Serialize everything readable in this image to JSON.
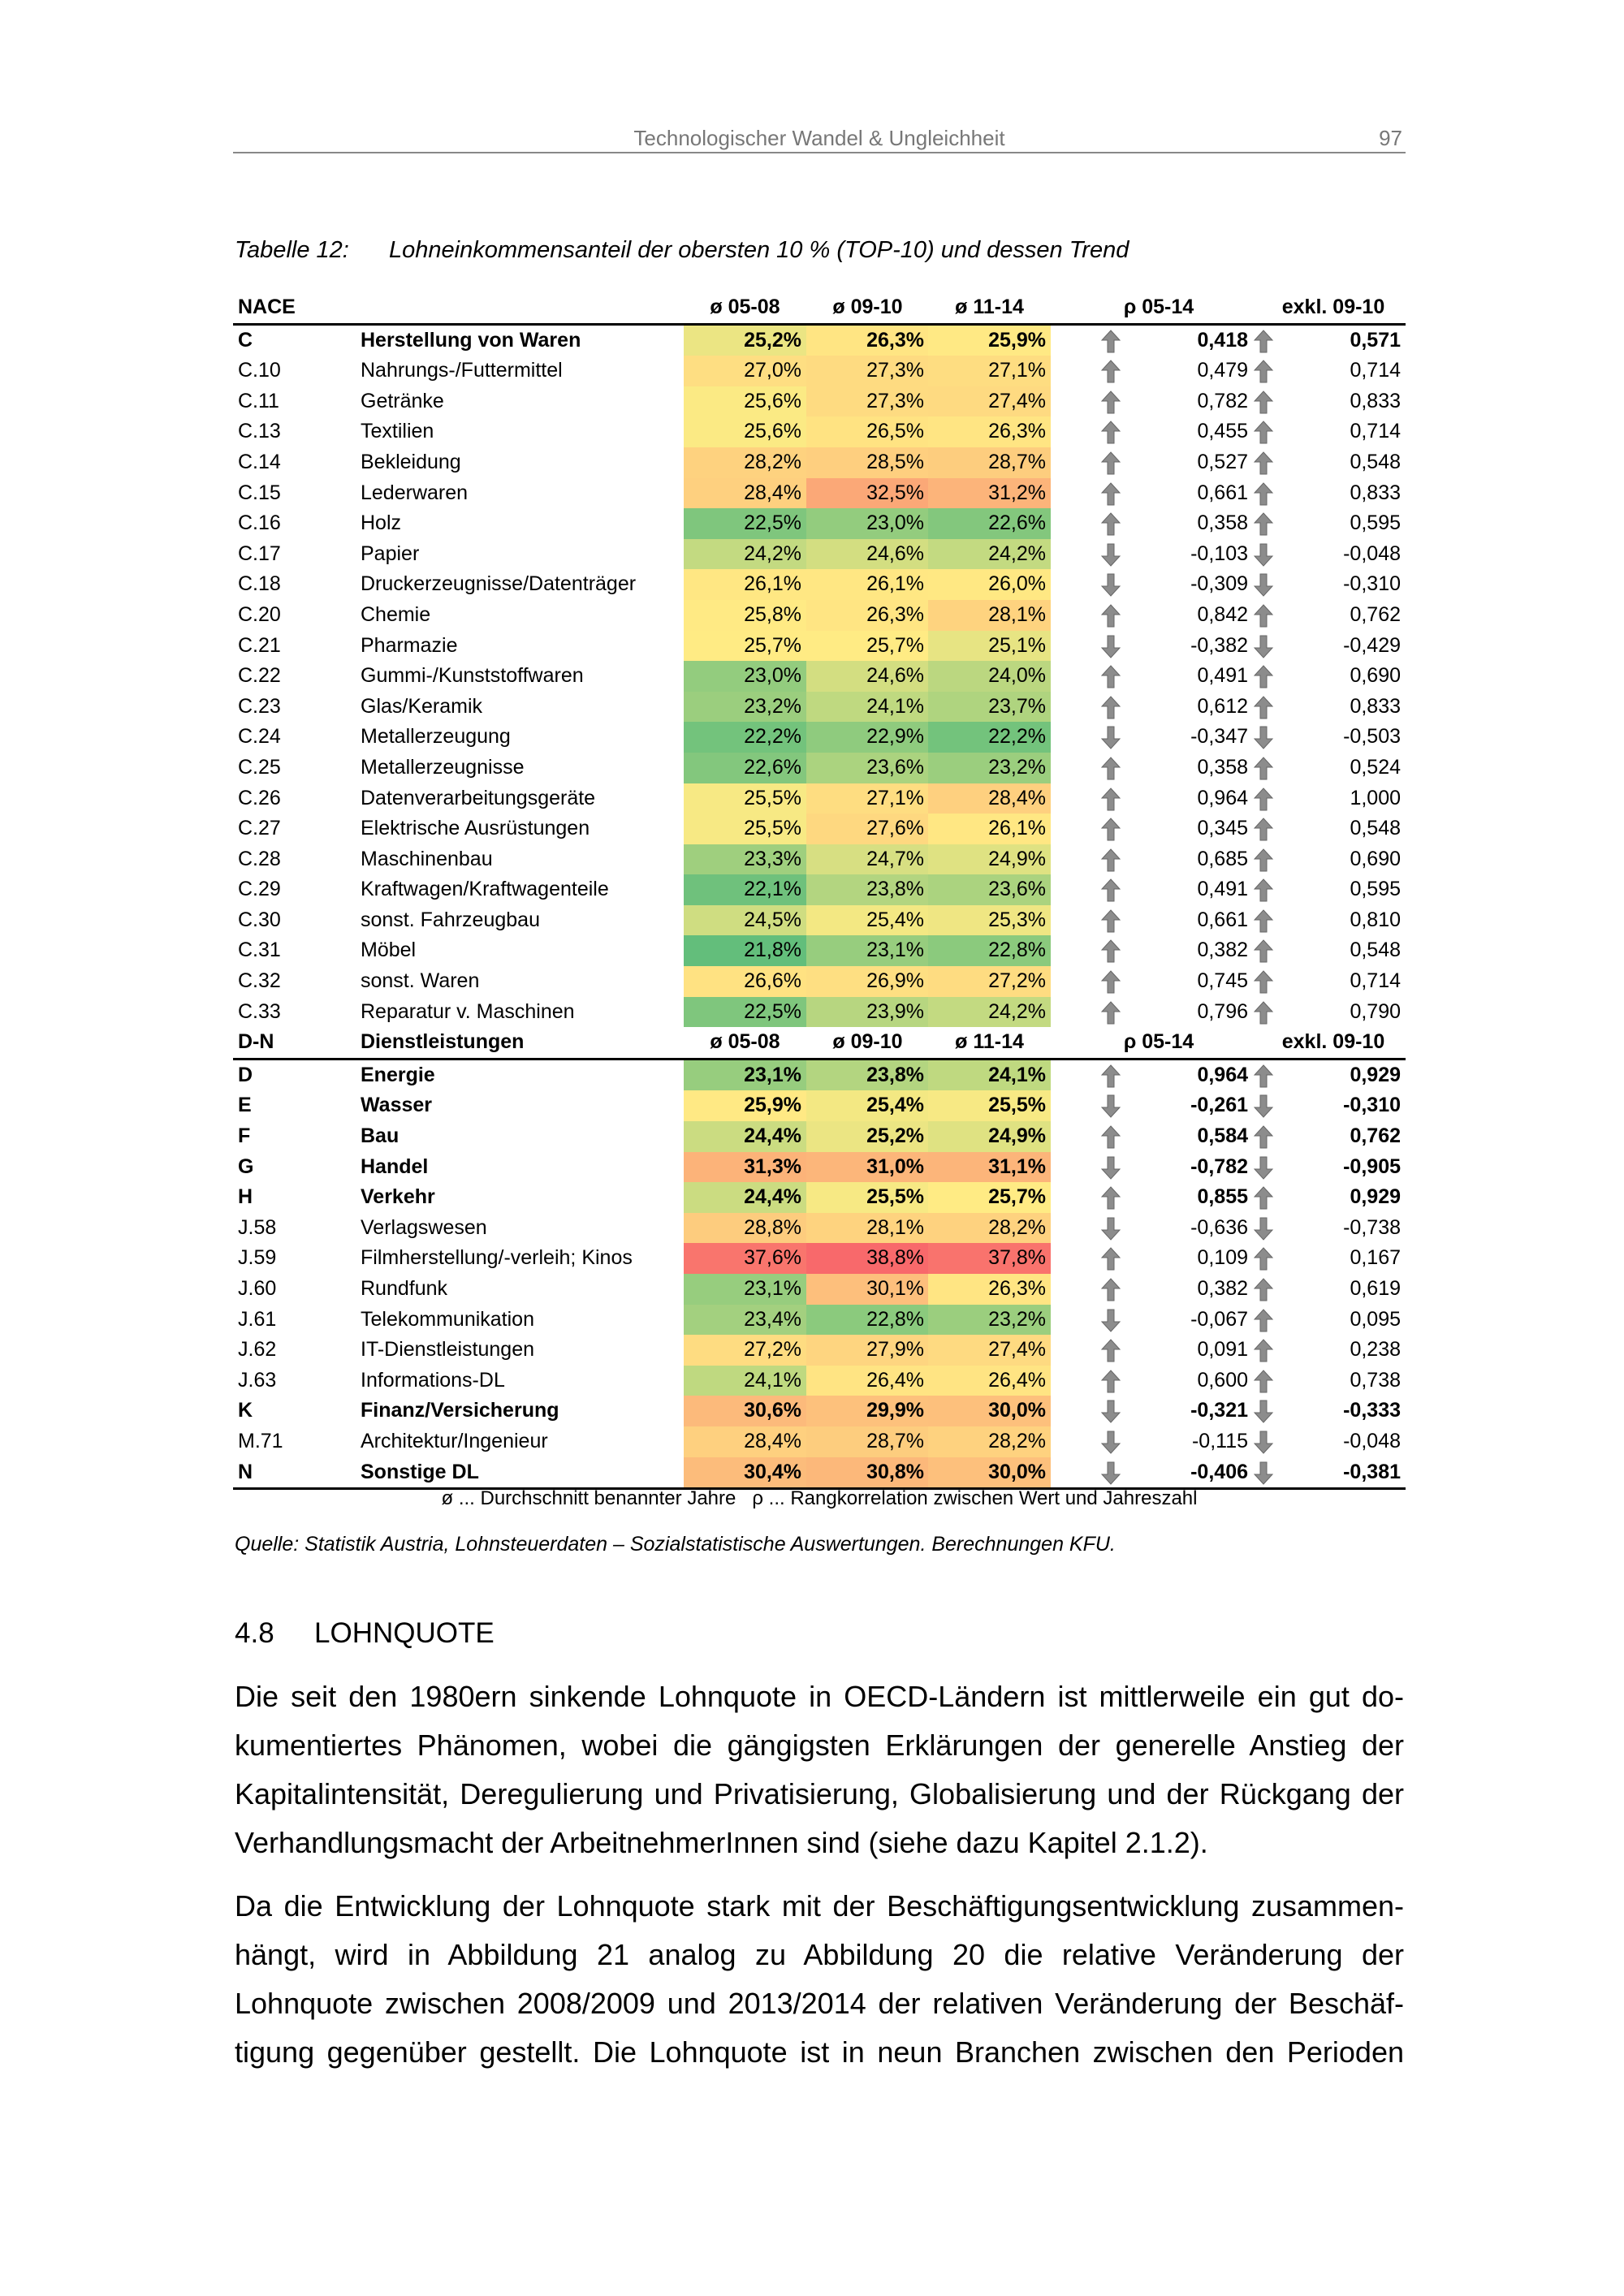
{
  "running_head": {
    "title": "Technologischer Wandel & Ungleichheit",
    "page": "97"
  },
  "caption": {
    "label": "Tabelle 12:",
    "text": "Lohneinkommensanteil der obersten 10 % (TOP-10) und dessen Trend"
  },
  "table": {
    "color_scale": {
      "low": "#63BE7B",
      "mid": "#FFEB84",
      "high": "#F8696B"
    },
    "arrow_color": "#8c8c8c",
    "columns": [
      "ø 05-08",
      "ø 09-10",
      "ø 11-14",
      "ρ 05-14",
      "exkl. 09-10"
    ],
    "sections": [
      {
        "code": "NACE",
        "name": "",
        "rows": [
          {
            "code": "C",
            "name": "Herstellung von Waren",
            "bold": true,
            "v": [
              "25,2%",
              "26,3%",
              "25,9%"
            ],
            "rho": "0,418",
            "exkl": "0,571"
          },
          {
            "code": "C.10",
            "name": "Nahrungs-/Futtermittel",
            "v": [
              "27,0%",
              "27,3%",
              "27,1%"
            ],
            "rho": "0,479",
            "exkl": "0,714"
          },
          {
            "code": "C.11",
            "name": "Getränke",
            "v": [
              "25,6%",
              "27,3%",
              "27,4%"
            ],
            "rho": "0,782",
            "exkl": "0,833"
          },
          {
            "code": "C.13",
            "name": "Textilien",
            "v": [
              "25,6%",
              "26,5%",
              "26,3%"
            ],
            "rho": "0,455",
            "exkl": "0,714"
          },
          {
            "code": "C.14",
            "name": "Bekleidung",
            "v": [
              "28,2%",
              "28,5%",
              "28,7%"
            ],
            "rho": "0,527",
            "exkl": "0,548"
          },
          {
            "code": "C.15",
            "name": "Lederwaren",
            "v": [
              "28,4%",
              "32,5%",
              "31,2%"
            ],
            "rho": "0,661",
            "exkl": "0,833"
          },
          {
            "code": "C.16",
            "name": "Holz",
            "v": [
              "22,5%",
              "23,0%",
              "22,6%"
            ],
            "rho": "0,358",
            "exkl": "0,595"
          },
          {
            "code": "C.17",
            "name": "Papier",
            "v": [
              "24,2%",
              "24,6%",
              "24,2%"
            ],
            "rho": "-0,103",
            "exkl": "-0,048"
          },
          {
            "code": "C.18",
            "name": "Druckerzeugnisse/Datenträger",
            "v": [
              "26,1%",
              "26,1%",
              "26,0%"
            ],
            "rho": "-0,309",
            "exkl": "-0,310"
          },
          {
            "code": "C.20",
            "name": "Chemie",
            "v": [
              "25,8%",
              "26,3%",
              "28,1%"
            ],
            "rho": "0,842",
            "exkl": "0,762"
          },
          {
            "code": "C.21",
            "name": "Pharmazie",
            "v": [
              "25,7%",
              "25,7%",
              "25,1%"
            ],
            "rho": "-0,382",
            "exkl": "-0,429"
          },
          {
            "code": "C.22",
            "name": "Gummi-/Kunststoffwaren",
            "v": [
              "23,0%",
              "24,6%",
              "24,0%"
            ],
            "rho": "0,491",
            "exkl": "0,690"
          },
          {
            "code": "C.23",
            "name": "Glas/Keramik",
            "v": [
              "23,2%",
              "24,1%",
              "23,7%"
            ],
            "rho": "0,612",
            "exkl": "0,833"
          },
          {
            "code": "C.24",
            "name": "Metallerzeugung",
            "v": [
              "22,2%",
              "22,9%",
              "22,2%"
            ],
            "rho": "-0,347",
            "exkl": "-0,503"
          },
          {
            "code": "C.25",
            "name": "Metallerzeugnisse",
            "v": [
              "22,6%",
              "23,6%",
              "23,2%"
            ],
            "rho": "0,358",
            "exkl": "0,524"
          },
          {
            "code": "C.26",
            "name": "Datenverarbeitungsgeräte",
            "v": [
              "25,5%",
              "27,1%",
              "28,4%"
            ],
            "rho": "0,964",
            "exkl": "1,000"
          },
          {
            "code": "C.27",
            "name": "Elektrische Ausrüstungen",
            "v": [
              "25,5%",
              "27,6%",
              "26,1%"
            ],
            "rho": "0,345",
            "exkl": "0,548"
          },
          {
            "code": "C.28",
            "name": "Maschinenbau",
            "v": [
              "23,3%",
              "24,7%",
              "24,9%"
            ],
            "rho": "0,685",
            "exkl": "0,690"
          },
          {
            "code": "C.29",
            "name": "Kraftwagen/Kraftwagenteile",
            "v": [
              "22,1%",
              "23,8%",
              "23,6%"
            ],
            "rho": "0,491",
            "exkl": "0,595"
          },
          {
            "code": "C.30",
            "name": "sonst. Fahrzeugbau",
            "v": [
              "24,5%",
              "25,4%",
              "25,3%"
            ],
            "rho": "0,661",
            "exkl": "0,810"
          },
          {
            "code": "C.31",
            "name": "Möbel",
            "v": [
              "21,8%",
              "23,1%",
              "22,8%"
            ],
            "rho": "0,382",
            "exkl": "0,548"
          },
          {
            "code": "C.32",
            "name": "sonst. Waren",
            "v": [
              "26,6%",
              "26,9%",
              "27,2%"
            ],
            "rho": "0,745",
            "exkl": "0,714"
          },
          {
            "code": "C.33",
            "name": "Reparatur v. Maschinen",
            "v": [
              "22,5%",
              "23,9%",
              "24,2%"
            ],
            "rho": "0,796",
            "exkl": "0,790"
          }
        ]
      },
      {
        "code": "D-N",
        "name": "Dienstleistungen",
        "rows": [
          {
            "code": "D",
            "name": "Energie",
            "bold": true,
            "v": [
              "23,1%",
              "23,8%",
              "24,1%"
            ],
            "rho": "0,964",
            "exkl": "0,929"
          },
          {
            "code": "E",
            "name": "Wasser",
            "bold": true,
            "v": [
              "25,9%",
              "25,4%",
              "25,5%"
            ],
            "rho": "-0,261",
            "exkl": "-0,310"
          },
          {
            "code": "F",
            "name": "Bau",
            "bold": true,
            "v": [
              "24,4%",
              "25,2%",
              "24,9%"
            ],
            "rho": "0,584",
            "exkl": "0,762"
          },
          {
            "code": "G",
            "name": "Handel",
            "bold": true,
            "v": [
              "31,3%",
              "31,0%",
              "31,1%"
            ],
            "rho": "-0,782",
            "exkl": "-0,905"
          },
          {
            "code": "H",
            "name": "Verkehr",
            "bold": true,
            "v": [
              "24,4%",
              "25,5%",
              "25,7%"
            ],
            "rho": "0,855",
            "exkl": "0,929"
          },
          {
            "code": "J.58",
            "name": "Verlagswesen",
            "v": [
              "28,8%",
              "28,1%",
              "28,2%"
            ],
            "rho": "-0,636",
            "exkl": "-0,738"
          },
          {
            "code": "J.59",
            "name": "Filmherstellung/-verleih; Kinos",
            "v": [
              "37,6%",
              "38,8%",
              "37,8%"
            ],
            "rho": "0,109",
            "exkl": "0,167"
          },
          {
            "code": "J.60",
            "name": "Rundfunk",
            "v": [
              "23,1%",
              "30,1%",
              "26,3%"
            ],
            "rho": "0,382",
            "exkl": "0,619"
          },
          {
            "code": "J.61",
            "name": "Telekommunikation",
            "v": [
              "23,4%",
              "22,8%",
              "23,2%"
            ],
            "rho": "-0,067",
            "exkl": "0,095"
          },
          {
            "code": "J.62",
            "name": "IT-Dienstleistungen",
            "v": [
              "27,2%",
              "27,9%",
              "27,4%"
            ],
            "rho": "0,091",
            "exkl": "0,238"
          },
          {
            "code": "J.63",
            "name": "Informations-DL",
            "v": [
              "24,1%",
              "26,4%",
              "26,4%"
            ],
            "rho": "0,600",
            "exkl": "0,738"
          },
          {
            "code": "K",
            "name": "Finanz/Versicherung",
            "bold": true,
            "v": [
              "30,6%",
              "29,9%",
              "30,0%"
            ],
            "rho": "-0,321",
            "exkl": "-0,333"
          },
          {
            "code": "M.71",
            "name": "Architektur/Ingenieur",
            "v": [
              "28,4%",
              "28,7%",
              "28,2%"
            ],
            "rho": "-0,115",
            "exkl": "-0,048"
          },
          {
            "code": "N",
            "name": "Sonstige DL",
            "bold": true,
            "v": [
              "30,4%",
              "30,8%",
              "30,0%"
            ],
            "rho": "-0,406",
            "exkl": "-0,381"
          }
        ]
      }
    ],
    "footnote": "ø ... Durchschnitt benannter Jahre   ρ ... Rangkorrelation zwischen Wert und Jahreszahl"
  },
  "source": "Quelle: Statistik Austria, Lohnsteuerdaten – Sozialstatistische Auswertungen. Berechnungen KFU.",
  "section": {
    "number": "4.8",
    "title": "LOHNQUOTE"
  },
  "paragraphs": [
    [
      "Die seit den 1980ern sinkende Lohnquote in OECD-Ländern ist mittlerweile ein gut do-",
      "kumentiertes Phänomen, wobei die gängigsten Erklärungen der generelle Anstieg der",
      "Kapitalintensität, Deregulierung und Privatisierung, Globalisierung und der Rückgang der",
      "Verhandlungsmacht der ArbeitnehmerInnen sind (siehe dazu Kapitel 2.1.2)."
    ],
    [
      "Da die Entwicklung der Lohnquote stark mit der Beschäftigungsentwicklung zusammen-",
      "hängt, wird in Abbildung 21 analog zu Abbildung 20 die relative Veränderung der",
      "Lohnquote zwischen 2008/2009 und 2013/2014 der relativen Veränderung der Beschäf-",
      "tigung gegenüber gestellt. Die Lohnquote ist in neun Branchen zwischen den Perioden"
    ]
  ]
}
